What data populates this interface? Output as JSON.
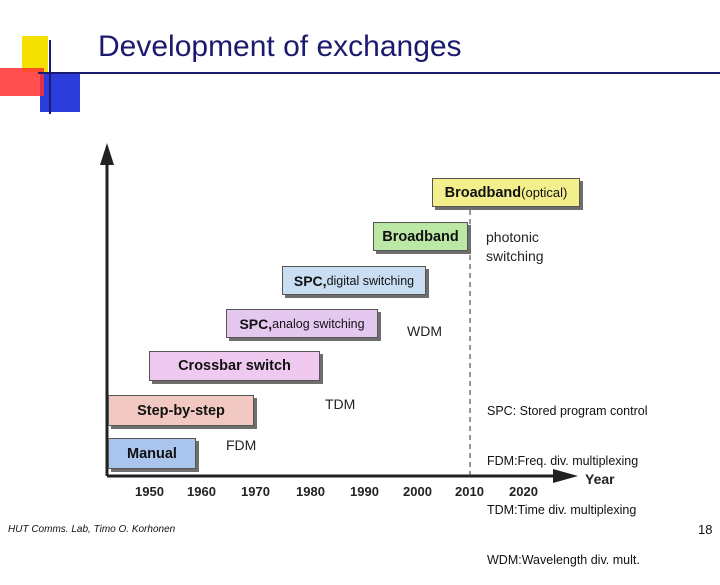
{
  "slide": {
    "title": "Development of exchanges",
    "footer": "HUT Comms. Lab, Timo O. Korhonen",
    "page_number": "18"
  },
  "diagram": {
    "axis_x_label": "Year",
    "years": [
      "1950",
      "1960",
      "1970",
      "1980",
      "1990",
      "2000",
      "2010",
      "2020"
    ],
    "boxes": [
      {
        "id": "manual",
        "bold": "Manual",
        "light": "",
        "color": "#a9c5ee"
      },
      {
        "id": "step-by-step",
        "bold": "Step-by-step",
        "light": "",
        "color": "#f2c8c2"
      },
      {
        "id": "crossbar",
        "bold": "Crossbar switch",
        "light": "",
        "color": "#efc9ef"
      },
      {
        "id": "spc-analog",
        "bold": "SPC,",
        "light": " analog switching",
        "color": "#e5c8f0"
      },
      {
        "id": "spc-digital",
        "bold": "SPC,",
        "light": " digital switching",
        "color": "#c9def2"
      },
      {
        "id": "broadband",
        "bold": "Broadband",
        "light": "",
        "color": "#bce8a6"
      },
      {
        "id": "broadband-optical",
        "bold": "Broadband",
        "light": " (optical)",
        "color": "#f3ef8d"
      }
    ],
    "annotations": {
      "fdm": "FDM",
      "tdm": "TDM",
      "wdm": "WDM",
      "photonic_line1": "photonic",
      "photonic_line2": "switching"
    },
    "legend": [
      "SPC: Stored program control",
      "FDM:Freq. div. multiplexing",
      "TDM:Time div. multiplexing",
      "WDM:Wavelength div. mult."
    ]
  }
}
